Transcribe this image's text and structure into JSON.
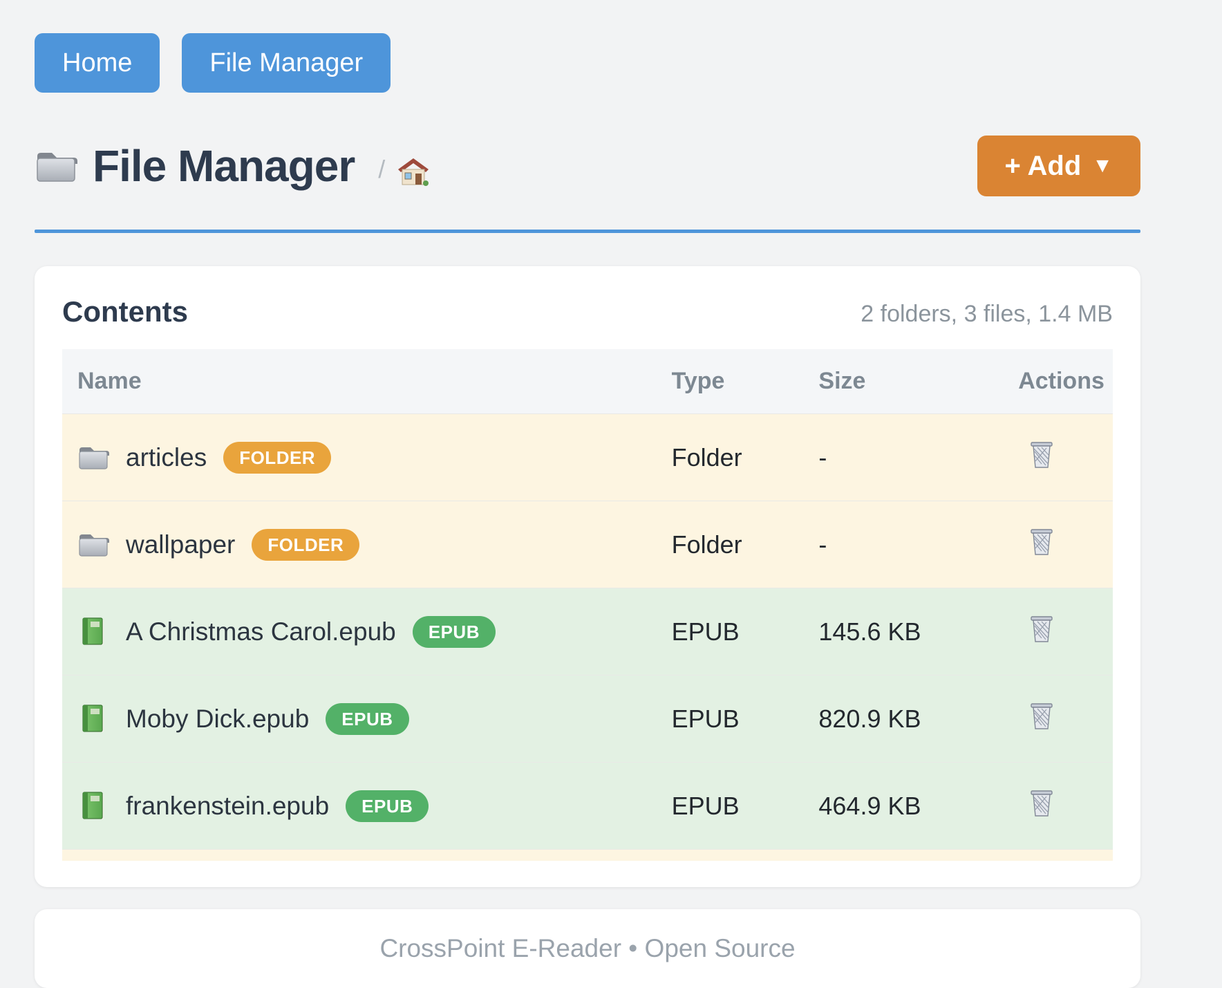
{
  "nav": {
    "home_label": "Home",
    "file_manager_label": "File Manager"
  },
  "header": {
    "title": "File Manager",
    "separator": "/",
    "add_label": "+ Add",
    "add_caret": "▼"
  },
  "contents": {
    "title": "Contents",
    "summary": "2 folders, 3 files, 1.4 MB",
    "columns": [
      "Name",
      "Type",
      "Size",
      "Actions"
    ],
    "rows": [
      {
        "name": "articles",
        "kind": "folder",
        "badge": "FOLDER",
        "type": "Folder",
        "size": "-"
      },
      {
        "name": "wallpaper",
        "kind": "folder",
        "badge": "FOLDER",
        "type": "Folder",
        "size": "-"
      },
      {
        "name": "A Christmas Carol.epub",
        "kind": "epub",
        "badge": "EPUB",
        "type": "EPUB",
        "size": "145.6 KB"
      },
      {
        "name": "Moby Dick.epub",
        "kind": "epub",
        "badge": "EPUB",
        "type": "EPUB",
        "size": "820.9 KB"
      },
      {
        "name": "frankenstein.epub",
        "kind": "epub",
        "badge": "EPUB",
        "type": "EPUB",
        "size": "464.9 KB"
      }
    ]
  },
  "footer": {
    "text": "CrossPoint E-Reader • Open Source"
  },
  "colors": {
    "accent_blue": "#4e95da",
    "add_orange": "#da8433",
    "folder_badge": "#e9a43c",
    "epub_badge": "#53b168",
    "folder_row_bg": "#fdf5e1",
    "epub_row_bg": "#e3f1e3",
    "page_bg": "#f2f3f4"
  }
}
